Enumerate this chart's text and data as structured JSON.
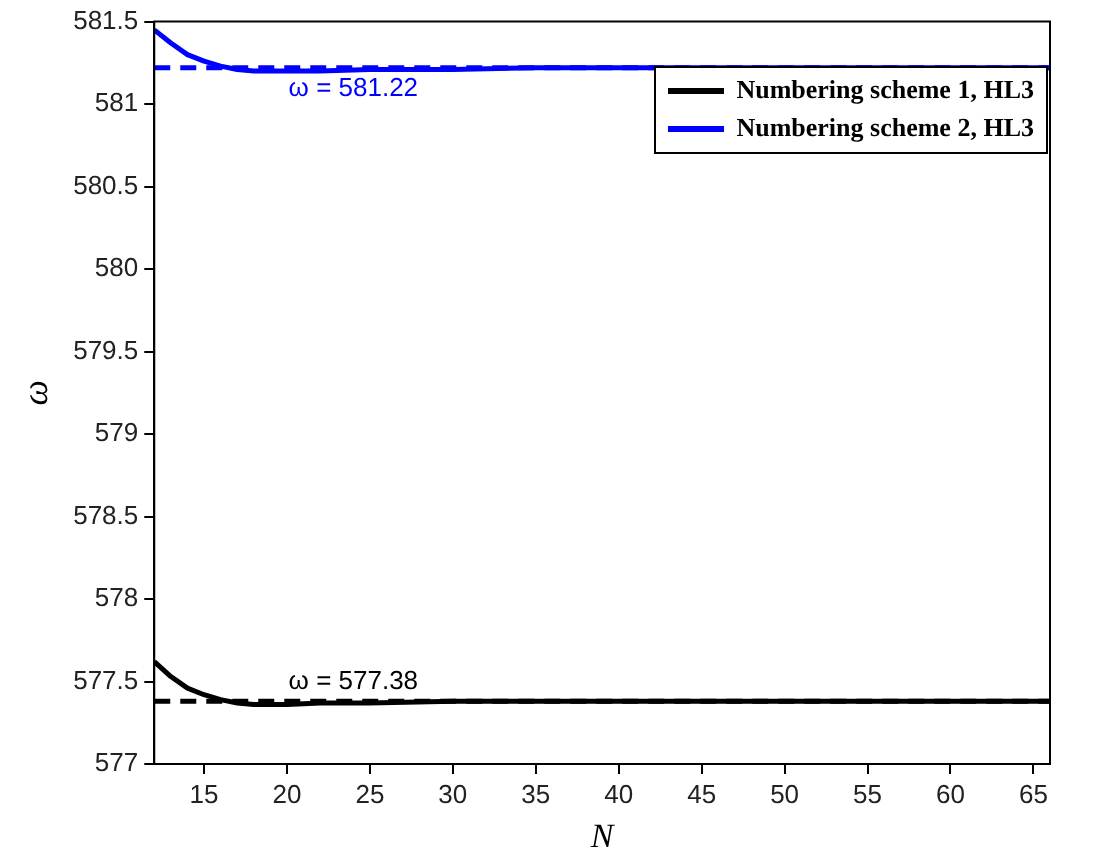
{
  "chart_data": {
    "type": "line",
    "xlabel": "N",
    "ylabel": "ω",
    "x": [
      12,
      13,
      14,
      15,
      16,
      17,
      18,
      19,
      20,
      22,
      25,
      30,
      35,
      40,
      45,
      50,
      55,
      60,
      66
    ],
    "series": [
      {
        "name": "Numbering scheme 1, HL3",
        "color": "#000000",
        "values": [
          577.62,
          577.53,
          577.46,
          577.42,
          577.39,
          577.37,
          577.36,
          577.36,
          577.36,
          577.37,
          577.37,
          577.38,
          577.38,
          577.38,
          577.38,
          577.38,
          577.38,
          577.38,
          577.38
        ]
      },
      {
        "name": "Numbering scheme 2, HL3",
        "color": "#0000ff",
        "values": [
          581.45,
          581.37,
          581.3,
          581.26,
          581.23,
          581.21,
          581.2,
          581.2,
          581.2,
          581.2,
          581.21,
          581.21,
          581.22,
          581.22,
          581.22,
          581.22,
          581.22,
          581.22,
          581.22
        ]
      }
    ],
    "xlim": [
      12,
      66
    ],
    "xticks": [
      15,
      20,
      25,
      30,
      35,
      40,
      45,
      50,
      55,
      60,
      65
    ],
    "ylim": [
      577,
      581.5
    ],
    "yticks": [
      577,
      577.5,
      578,
      578.5,
      579,
      579.5,
      580,
      580.5,
      581,
      581.5
    ],
    "ref_lines": [
      {
        "axis": "y",
        "value": 577.38,
        "label": "ω = 577.38",
        "color": "#000000",
        "line_style": "dashed"
      },
      {
        "axis": "y",
        "value": 581.22,
        "label": "ω = 581.22",
        "color": "#0000ff",
        "line_style": "dashed"
      }
    ],
    "grid": false,
    "legend": "top right",
    "marker": "none",
    "line_style": "solid"
  }
}
